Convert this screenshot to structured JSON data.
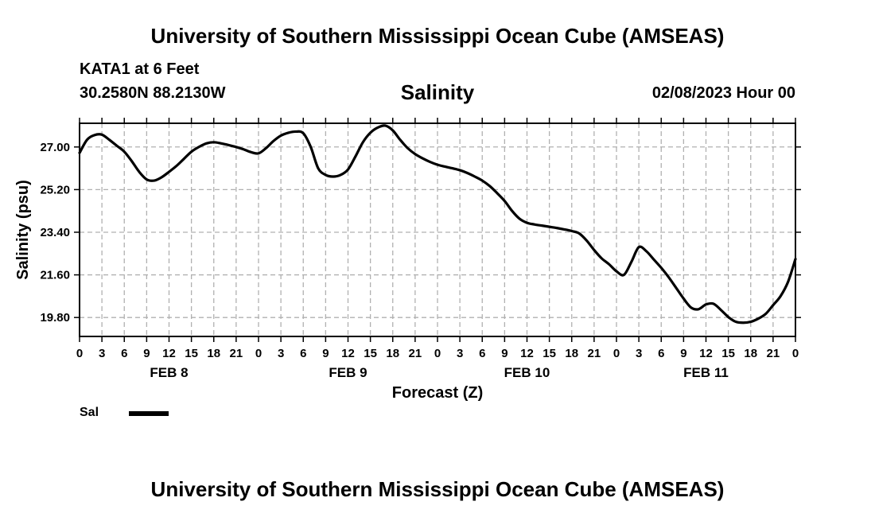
{
  "header": {
    "top_title": "University of Southern Mississippi Ocean Cube (AMSEAS)",
    "station": "KATA1 at 6 Feet",
    "coords": "30.2580N  88.2130W",
    "run_time": "02/08/2023 Hour 00",
    "bottom_title": "University of Southern Mississippi Ocean Cube (AMSEAS)"
  },
  "legend": {
    "label": "Sal",
    "color": "#000000"
  },
  "chart_data": {
    "type": "line",
    "title": "Salinity",
    "xlabel": "Forecast (Z)",
    "ylabel": "Salinity (psu)",
    "xlim": [
      0,
      96
    ],
    "ylim": [
      19.0,
      28.0
    ],
    "yticks": [
      19.8,
      21.6,
      23.4,
      25.2,
      27.0
    ],
    "ytick_labels": [
      "19.80",
      "21.60",
      "23.40",
      "25.20",
      "27.00"
    ],
    "xticks": [
      0,
      3,
      6,
      9,
      12,
      15,
      18,
      21,
      24,
      27,
      30,
      33,
      36,
      39,
      42,
      45,
      48,
      51,
      54,
      57,
      60,
      63,
      66,
      69,
      72,
      75,
      78,
      81,
      84,
      87,
      90,
      93,
      96
    ],
    "xtick_labels": [
      "0",
      "3",
      "6",
      "9",
      "12",
      "15",
      "18",
      "21",
      "0",
      "3",
      "6",
      "9",
      "12",
      "15",
      "18",
      "21",
      "0",
      "3",
      "6",
      "9",
      "12",
      "15",
      "18",
      "21",
      "0",
      "3",
      "6",
      "9",
      "12",
      "15",
      "18",
      "21",
      "0"
    ],
    "day_labels": [
      {
        "label": "FEB 8",
        "x": 12
      },
      {
        "label": "FEB 9",
        "x": 36
      },
      {
        "label": "FEB 10",
        "x": 60
      },
      {
        "label": "FEB 11",
        "x": 84
      }
    ],
    "grid": true,
    "series": [
      {
        "name": "Sal",
        "x": [
          0,
          1,
          2,
          3,
          4,
          5,
          6,
          7,
          8,
          9,
          10,
          11,
          12,
          13,
          14,
          15,
          16,
          17,
          18,
          19,
          20,
          21,
          22,
          23,
          24,
          25,
          26,
          27,
          28,
          29,
          30,
          31,
          32,
          33,
          34,
          35,
          36,
          37,
          38,
          39,
          40,
          41,
          42,
          43,
          44,
          45,
          46,
          47,
          48,
          49,
          50,
          51,
          52,
          53,
          54,
          55,
          56,
          57,
          58,
          59,
          60,
          61,
          62,
          63,
          64,
          65,
          66,
          67,
          68,
          69,
          70,
          71,
          72,
          73,
          74,
          75,
          76,
          77,
          78,
          79,
          80,
          81,
          82,
          83,
          84,
          85,
          86,
          87,
          88,
          89,
          90,
          91,
          92,
          93,
          94,
          95,
          96
        ],
        "values": [
          26.75,
          27.3,
          27.5,
          27.52,
          27.3,
          27.05,
          26.8,
          26.4,
          25.95,
          25.63,
          25.58,
          25.72,
          25.95,
          26.2,
          26.5,
          26.8,
          27.0,
          27.15,
          27.2,
          27.15,
          27.08,
          27.0,
          26.9,
          26.78,
          26.73,
          26.95,
          27.25,
          27.48,
          27.6,
          27.65,
          27.58,
          27.0,
          26.1,
          25.82,
          25.75,
          25.82,
          26.05,
          26.6,
          27.2,
          27.6,
          27.82,
          27.9,
          27.7,
          27.3,
          26.95,
          26.7,
          26.52,
          26.37,
          26.25,
          26.17,
          26.1,
          26.02,
          25.9,
          25.75,
          25.58,
          25.35,
          25.05,
          24.72,
          24.3,
          23.97,
          23.8,
          23.73,
          23.68,
          23.63,
          23.58,
          23.52,
          23.45,
          23.35,
          23.05,
          22.65,
          22.3,
          22.05,
          21.75,
          21.6,
          22.15,
          22.77,
          22.6,
          22.25,
          21.9,
          21.5,
          21.05,
          20.6,
          20.22,
          20.15,
          20.35,
          20.38,
          20.12,
          19.82,
          19.62,
          19.58,
          19.62,
          19.75,
          19.95,
          20.32,
          20.7,
          21.3,
          22.27
        ]
      }
    ]
  }
}
